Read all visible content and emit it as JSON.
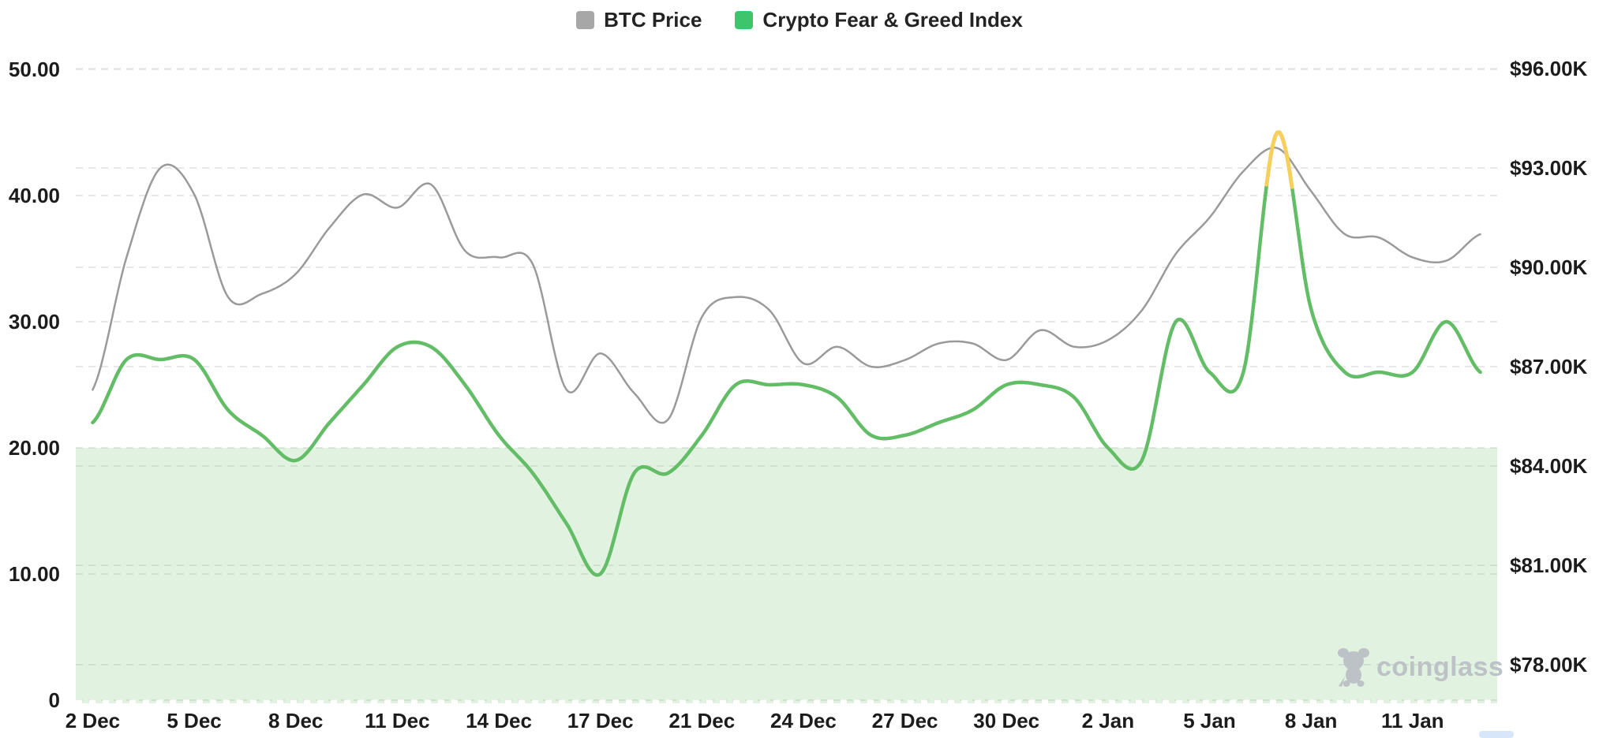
{
  "legend": {
    "items": [
      {
        "label": "BTC Price",
        "color": "#a7a7a7"
      },
      {
        "label": "Crypto Fear & Greed Index",
        "color": "#3ec46d"
      }
    ]
  },
  "watermark": {
    "text": "coinglass"
  },
  "chart_data": {
    "type": "line",
    "categories": [
      "2 Dec",
      "3 Dec",
      "4 Dec",
      "5 Dec",
      "6 Dec",
      "7 Dec",
      "8 Dec",
      "9 Dec",
      "10 Dec",
      "11 Dec",
      "12 Dec",
      "13 Dec",
      "14 Dec",
      "15 Dec",
      "16 Dec",
      "17 Dec",
      "19 Dec",
      "20 Dec",
      "21 Dec",
      "22 Dec",
      "23 Dec",
      "24 Dec",
      "25 Dec",
      "26 Dec",
      "27 Dec",
      "28 Dec",
      "29 Dec",
      "30 Dec",
      "31 Dec",
      "1 Jan",
      "2 Jan",
      "3 Jan",
      "4 Jan",
      "5 Jan",
      "6 Jan",
      "7 Jan",
      "8 Jan",
      "9 Jan",
      "10 Jan",
      "11 Jan",
      "12 Jan",
      "13 Jan"
    ],
    "x_tick_label_every": 3,
    "x_tick_labels_visible": [
      "2 Dec",
      "5 Dec",
      "8 Dec",
      "11 Dec",
      "14 Dec",
      "17 Dec",
      "21 Dec",
      "24 Dec",
      "27 Dec",
      "30 Dec",
      "2 Jan",
      "5 Jan",
      "8 Jan",
      "11 Jan"
    ],
    "series": [
      {
        "name": "BTC Price",
        "axis": "right",
        "unit": "USD thousands",
        "color": "#9a9a9a",
        "line_width": 2.5,
        "values": [
          86.3,
          90.3,
          93.0,
          92.2,
          89.1,
          89.2,
          89.8,
          91.2,
          92.2,
          91.8,
          92.5,
          90.5,
          90.3,
          90.1,
          86.3,
          87.4,
          86.2,
          85.4,
          88.5,
          89.1,
          88.7,
          87.1,
          87.6,
          87.0,
          87.2,
          87.7,
          87.7,
          87.2,
          88.1,
          87.6,
          87.8,
          88.7,
          90.4,
          91.5,
          92.9,
          93.6,
          92.3,
          91.0,
          90.9,
          90.3,
          90.2,
          91.0
        ]
      },
      {
        "name": "Crypto Fear & Greed Index",
        "axis": "left",
        "color": "#62bd66",
        "greed_color": "#f6cf5d",
        "greed_threshold": 40,
        "line_width": 4.5,
        "values": [
          22,
          27,
          27,
          27,
          23,
          21,
          19,
          22,
          25,
          28,
          28,
          25,
          21,
          18,
          14,
          10,
          18,
          18,
          21,
          25,
          25,
          25,
          24,
          21,
          21,
          22,
          23,
          25,
          25,
          24,
          20,
          19,
          30,
          26,
          26,
          45,
          31,
          26,
          26,
          26,
          30,
          26
        ]
      }
    ],
    "left_axis": {
      "title": "Crypto Fear & Greed Index",
      "tick_labels": [
        "0",
        "10.00",
        "20.00",
        "30.00",
        "40.00",
        "50.00"
      ],
      "tick_values": [
        0,
        10,
        20,
        30,
        40,
        50
      ],
      "range": [
        0,
        50
      ]
    },
    "right_axis": {
      "title": "BTC Price",
      "tick_labels": [
        "$78.00K",
        "$81.00K",
        "$84.00K",
        "$87.00K",
        "$90.00K",
        "$93.00K",
        "$96.00K"
      ],
      "tick_values": [
        78,
        81,
        84,
        87,
        90,
        93,
        96
      ],
      "range_usd_k": [
        78,
        96
      ]
    },
    "fear_zone": {
      "min": 0,
      "max": 20,
      "fill_color": "rgba(125,195,120,0.22)"
    },
    "grid": "dashed",
    "grid_color": "#e8e8e8",
    "text_color": "#1c1c1c"
  }
}
